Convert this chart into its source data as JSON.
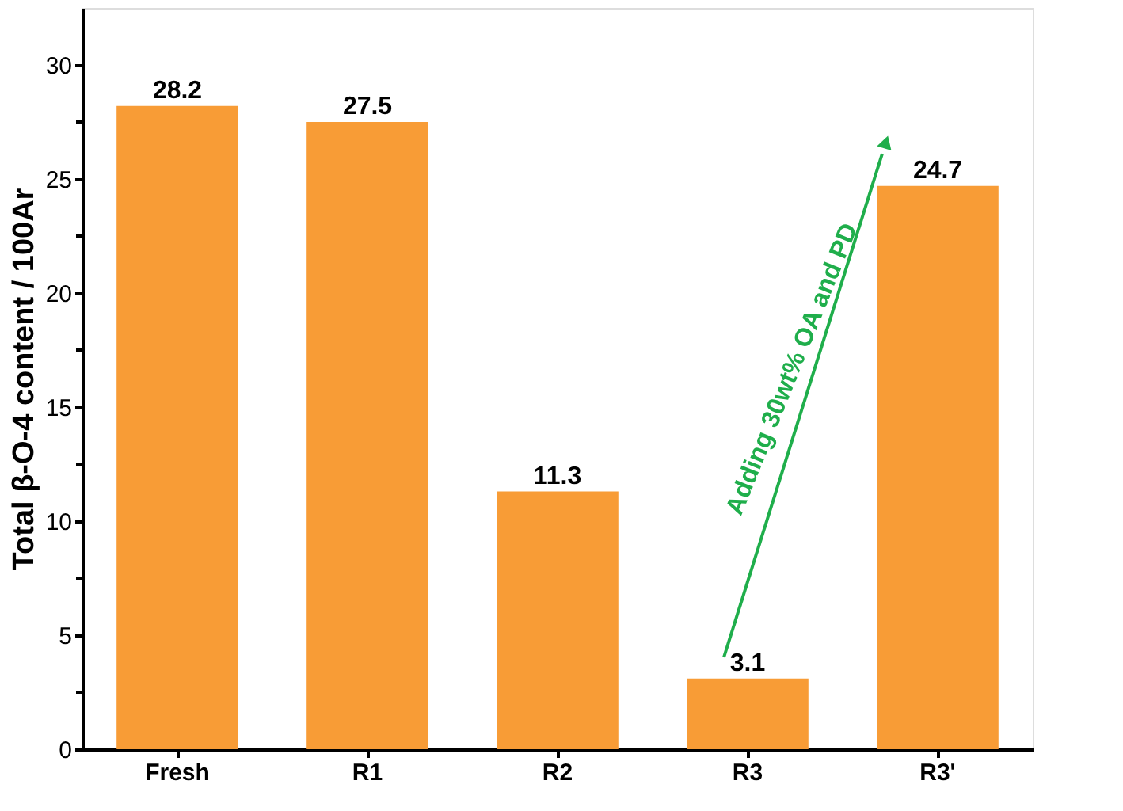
{
  "chart_data": {
    "type": "bar",
    "ylabel": "Total β-O-4 content / 100Ar",
    "categories": [
      "Fresh",
      "R1",
      "R2",
      "R3",
      "R3'"
    ],
    "values": [
      28.2,
      27.5,
      11.3,
      3.1,
      24.7
    ],
    "color": "#f89c36",
    "data_labels": true,
    "ylim": [
      0,
      32.5
    ],
    "yticks": [
      0,
      {
        "value": 2.5,
        "label": null
      },
      5,
      {
        "value": 7.5,
        "label": null
      },
      10,
      {
        "value": 12.5,
        "label": null
      },
      15,
      {
        "value": 17.5,
        "label": null
      },
      20,
      {
        "value": 22.5,
        "label": null
      },
      25,
      {
        "value": 27.5,
        "label": null
      },
      30
    ],
    "grid": false,
    "annotations": [
      "Adding 30wt% OA and PD"
    ]
  }
}
